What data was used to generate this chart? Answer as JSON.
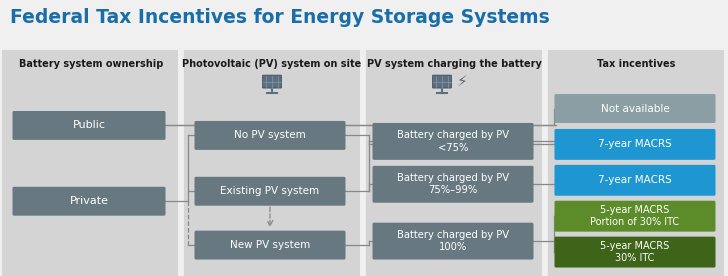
{
  "title": "Federal Tax Incentives for Energy Storage Systems",
  "title_color": "#1a6ea8",
  "title_fontsize": 13.5,
  "fig_bg": "#f0f0f0",
  "diagram_bg": "#d6d6d6",
  "box_gray": "#677880",
  "box_blue": "#1e96d2",
  "box_green1": "#5c8c2a",
  "box_green2": "#3d6418",
  "box_na": "#8a9ea4",
  "line_color": "#888888",
  "text_white": "#ffffff",
  "col_headers": [
    "Battery system ownership",
    "Photovoltaic (PV) system on site",
    "PV system charging the battery",
    "Tax incentives"
  ],
  "figsize": [
    7.28,
    2.76
  ],
  "dpi": 100
}
